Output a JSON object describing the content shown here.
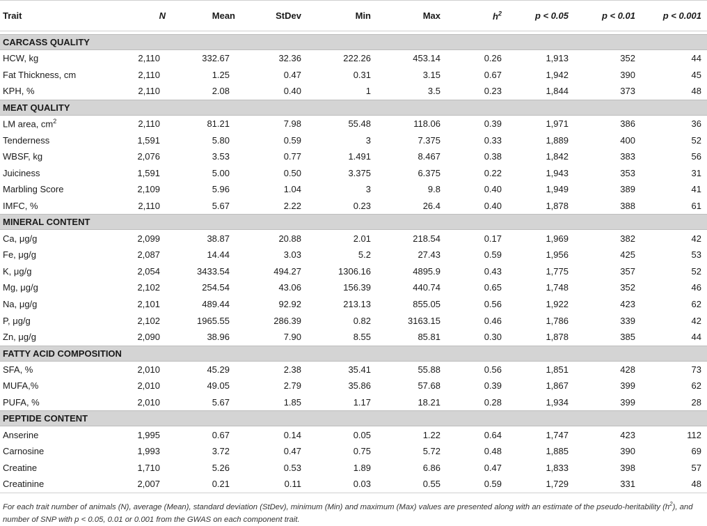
{
  "columns": [
    "Trait",
    "N",
    "Mean",
    "StDev",
    "Min",
    "Max",
    "h2",
    "p < 0.05",
    "p < 0.01",
    "p < 0.001"
  ],
  "sections": [
    {
      "title": "CARCASS QUALITY",
      "rows": [
        [
          "HCW, kg",
          "2,110",
          "332.67",
          "32.36",
          "222.26",
          "453.14",
          "0.26",
          "1,913",
          "352",
          "44"
        ],
        [
          "Fat Thickness, cm",
          "2,110",
          "1.25",
          "0.47",
          "0.31",
          "3.15",
          "0.67",
          "1,942",
          "390",
          "45"
        ],
        [
          "KPH, %",
          "2,110",
          "2.08",
          "0.40",
          "1",
          "3.5",
          "0.23",
          "1,844",
          "373",
          "48"
        ]
      ]
    },
    {
      "title": "MEAT QUALITY",
      "rows": [
        [
          "LM area, cm2",
          "2,110",
          "81.21",
          "7.98",
          "55.48",
          "118.06",
          "0.39",
          "1,971",
          "386",
          "36"
        ],
        [
          "Tenderness",
          "1,591",
          "5.80",
          "0.59",
          "3",
          "7.375",
          "0.33",
          "1,889",
          "400",
          "52"
        ],
        [
          "WBSF, kg",
          "2,076",
          "3.53",
          "0.77",
          "1.491",
          "8.467",
          "0.38",
          "1,842",
          "383",
          "56"
        ],
        [
          "Juiciness",
          "1,591",
          "5.00",
          "0.50",
          "3.375",
          "6.375",
          "0.22",
          "1,943",
          "353",
          "31"
        ],
        [
          "Marbling Score",
          "2,109",
          "5.96",
          "1.04",
          "3",
          "9.8",
          "0.40",
          "1,949",
          "389",
          "41"
        ],
        [
          "IMFC, %",
          "2,110",
          "5.67",
          "2.22",
          "0.23",
          "26.4",
          "0.40",
          "1,878",
          "388",
          "61"
        ]
      ]
    },
    {
      "title": "MINERAL CONTENT",
      "rows": [
        [
          "Ca, μg/g",
          "2,099",
          "38.87",
          "20.88",
          "2.01",
          "218.54",
          "0.17",
          "1,969",
          "382",
          "42"
        ],
        [
          "Fe, μg/g",
          "2,087",
          "14.44",
          "3.03",
          "5.2",
          "27.43",
          "0.59",
          "1,956",
          "425",
          "53"
        ],
        [
          "K, μg/g",
          "2,054",
          "3433.54",
          "494.27",
          "1306.16",
          "4895.9",
          "0.43",
          "1,775",
          "357",
          "52"
        ],
        [
          "Mg, μg/g",
          "2,102",
          "254.54",
          "43.06",
          "156.39",
          "440.74",
          "0.65",
          "1,748",
          "352",
          "46"
        ],
        [
          "Na, μg/g",
          "2,101",
          "489.44",
          "92.92",
          "213.13",
          "855.05",
          "0.56",
          "1,922",
          "423",
          "62"
        ],
        [
          "P, μg/g",
          "2,102",
          "1965.55",
          "286.39",
          "0.82",
          "3163.15",
          "0.46",
          "1,786",
          "339",
          "42"
        ],
        [
          "Zn, μg/g",
          "2,090",
          "38.96",
          "7.90",
          "8.55",
          "85.81",
          "0.30",
          "1,878",
          "385",
          "44"
        ]
      ]
    },
    {
      "title": "FATTY ACID COMPOSITION",
      "rows": [
        [
          "SFA, %",
          "2,010",
          "45.29",
          "2.38",
          "35.41",
          "55.88",
          "0.56",
          "1,851",
          "428",
          "73"
        ],
        [
          "MUFA,%",
          "2,010",
          "49.05",
          "2.79",
          "35.86",
          "57.68",
          "0.39",
          "1,867",
          "399",
          "62"
        ],
        [
          "PUFA, %",
          "2,010",
          "5.67",
          "1.85",
          "1.17",
          "18.21",
          "0.28",
          "1,934",
          "399",
          "28"
        ]
      ]
    },
    {
      "title": "PEPTIDE CONTENT",
      "rows": [
        [
          "Anserine",
          "1,995",
          "0.67",
          "0.14",
          "0.05",
          "1.22",
          "0.64",
          "1,747",
          "423",
          "112"
        ],
        [
          "Carnosine",
          "1,993",
          "3.72",
          "0.47",
          "0.75",
          "5.72",
          "0.48",
          "1,885",
          "390",
          "69"
        ],
        [
          "Creatine",
          "1,710",
          "5.26",
          "0.53",
          "1.89",
          "6.86",
          "0.47",
          "1,833",
          "398",
          "57"
        ],
        [
          "Creatinine",
          "2,007",
          "0.21",
          "0.11",
          "0.03",
          "0.55",
          "0.59",
          "1,729",
          "331",
          "48"
        ]
      ]
    }
  ],
  "footnote": "For each trait number of animals (N), average (Mean), standard deviation (StDev), minimum (Min) and maximum (Max) values are presented along with an estimate of the pseudo-heritability (h2), and number of SNP with p < 0.05, 0.01 or 0.001 from the GWAS on each component trait."
}
